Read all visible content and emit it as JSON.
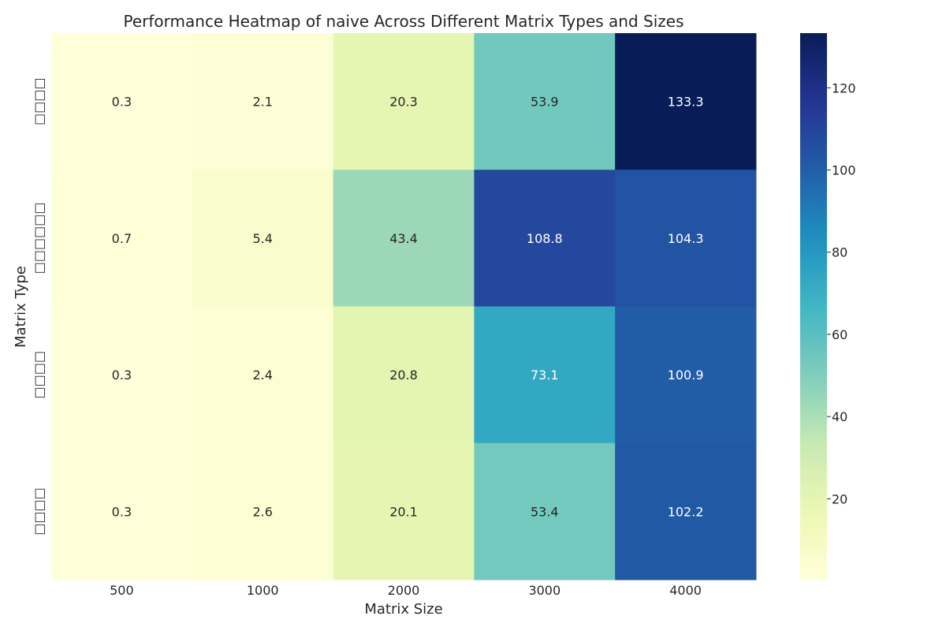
{
  "chart_data": {
    "type": "heatmap",
    "title": "Performance Heatmap of naive Across Different Matrix Types and Sizes",
    "xlabel": "Matrix Size",
    "ylabel": "Matrix Type",
    "x_categories": [
      "500",
      "1000",
      "2000",
      "3000",
      "4000"
    ],
    "y_categories": [
      "□□□□",
      "□□□□□□",
      "□□□□",
      "□□□□"
    ],
    "values": [
      [
        0.3,
        2.1,
        20.3,
        53.9,
        133.3
      ],
      [
        0.7,
        5.4,
        43.4,
        108.8,
        104.3
      ],
      [
        0.3,
        2.4,
        20.8,
        73.1,
        100.9
      ],
      [
        0.3,
        2.6,
        20.1,
        53.4,
        102.2
      ]
    ],
    "value_labels": [
      [
        "0.3",
        "2.1",
        "20.3",
        "53.9",
        "133.3"
      ],
      [
        "0.7",
        "5.4",
        "43.4",
        "108.8",
        "104.3"
      ],
      [
        "0.3",
        "2.4",
        "20.8",
        "73.1",
        "100.9"
      ],
      [
        "0.3",
        "2.6",
        "20.1",
        "53.4",
        "102.2"
      ]
    ],
    "colormap": "YlGnBu",
    "vmin": 0.3,
    "vmax": 133.3,
    "colorbar_ticks": [
      "20",
      "40",
      "60",
      "80",
      "100",
      "120"
    ]
  }
}
